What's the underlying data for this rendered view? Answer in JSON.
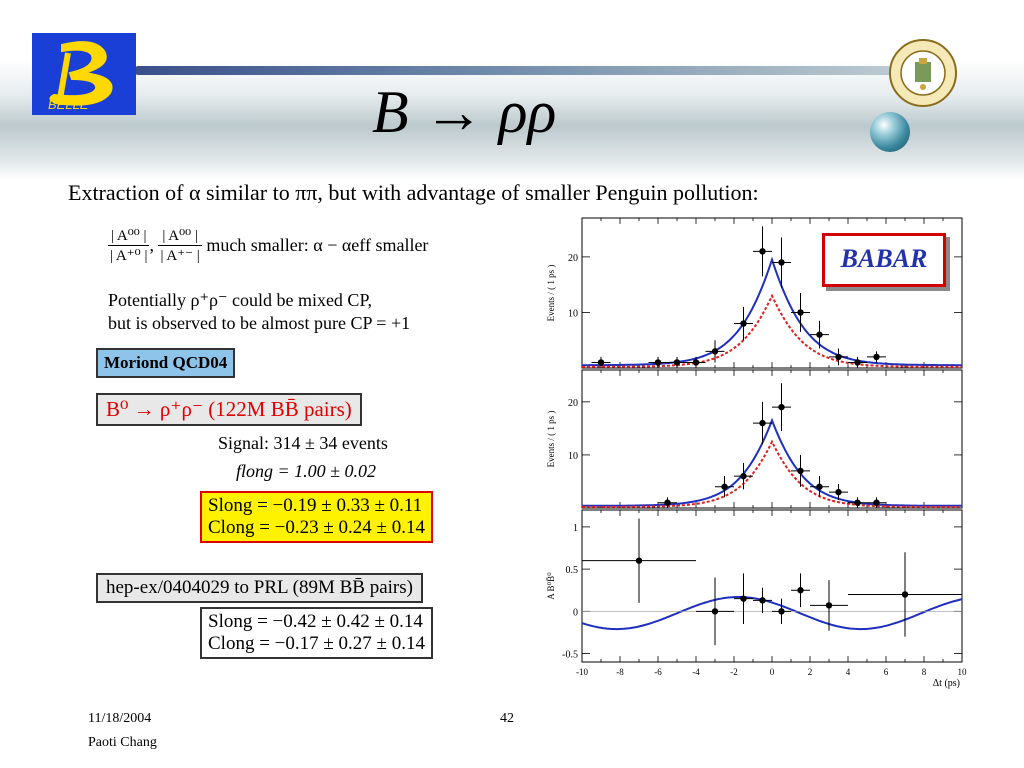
{
  "slide": {
    "title": "B → ρρ",
    "subtitle": "Extraction of α similar to ππ, but with advantage of smaller Penguin pollution:",
    "ratio_line": {
      "frac1_num": "| A⁰⁰ |",
      "frac1_den": "| A⁺⁰ |",
      "frac2_num": "| A⁰⁰ |",
      "frac2_den": "| A⁺⁻ |",
      "text": "much smaller: α − αeff smaller"
    },
    "mixed_cp": "Potentially ρ⁺ρ⁻ could be mixed CP,",
    "pure_cp": "but is observed to be almost pure CP = +1",
    "moriond_label": "Moriond QCD04",
    "decay_box": "B⁰ → ρ⁺ρ⁻ (122M BB̄ pairs)",
    "signal": "Signal: 314 ± 34 events",
    "flong": "flong = 1.00 ± 0.02",
    "s_long_1": "Slong = −0.19 ± 0.33 ± 0.11",
    "c_long_1": "Clong = −0.23 ± 0.24 ± 0.14",
    "hep_box": "hep-ex/0404029 to PRL (89M BB̄ pairs)",
    "s_long_2": "Slong = −0.42 ± 0.42 ± 0.14",
    "c_long_2": "Clong = −0.17 ± 0.27 ± 0.14",
    "footer_date": "11/18/2004",
    "footer_author": "Paoti Chang",
    "page_number": "42",
    "belle_logo_text": "BELLE",
    "babar_label": "BABAR"
  },
  "colors": {
    "fit_line": "#1f2fbf",
    "dashed_line": "#e02020",
    "moriond_bg": "#8ec3ea",
    "yellow_box": "#fff200",
    "box_border_red": "#e00000",
    "logo_blue": "#1a3fd6",
    "logo_yellow": "#ffd800"
  },
  "chart_data": [
    {
      "type": "scatter",
      "panel": "top",
      "ylabel": "Events / ( 1 ps )",
      "xlim": [
        -10,
        10
      ],
      "ylim": [
        0,
        27
      ],
      "yticks": [
        10,
        20
      ],
      "points": [
        {
          "x": -9,
          "y": 1,
          "xerr": 0.5,
          "yerr": 1
        },
        {
          "x": -6,
          "y": 1,
          "xerr": 0.5,
          "yerr": 1
        },
        {
          "x": -5,
          "y": 1,
          "xerr": 0.5,
          "yerr": 1
        },
        {
          "x": -4,
          "y": 1,
          "xerr": 0.5,
          "yerr": 1
        },
        {
          "x": -3,
          "y": 3,
          "xerr": 0.5,
          "yerr": 2
        },
        {
          "x": -1.5,
          "y": 8,
          "xerr": 0.5,
          "yerr": 3
        },
        {
          "x": -0.5,
          "y": 21,
          "xerr": 0.5,
          "yerr": 4.5
        },
        {
          "x": 0.5,
          "y": 19,
          "xerr": 0.5,
          "yerr": 4.5
        },
        {
          "x": 1.5,
          "y": 10,
          "xerr": 0.5,
          "yerr": 3.5
        },
        {
          "x": 2.5,
          "y": 6,
          "xerr": 0.5,
          "yerr": 2.5
        },
        {
          "x": 3.5,
          "y": 2,
          "xerr": 0.5,
          "yerr": 1.5
        },
        {
          "x": 4.5,
          "y": 1,
          "xerr": 0.5,
          "yerr": 1
        },
        {
          "x": 5.5,
          "y": 2,
          "xerr": 0.5,
          "yerr": 1
        }
      ],
      "fit_curve": {
        "peak": 19.5,
        "sigma_left": 1.1,
        "sigma_right": 1.1,
        "baseline": 0.5
      },
      "dashed_curve": {
        "peak": 13,
        "sigma_left": 1.05,
        "sigma_right": 1.05,
        "baseline": 0.2
      }
    },
    {
      "type": "scatter",
      "panel": "middle",
      "ylabel": "Events / ( 1 ps )",
      "xlim": [
        -10,
        10
      ],
      "ylim": [
        0,
        26
      ],
      "yticks": [
        10,
        20
      ],
      "points": [
        {
          "x": -5.5,
          "y": 1,
          "xerr": 0.5,
          "yerr": 1
        },
        {
          "x": -2.5,
          "y": 4,
          "xerr": 0.5,
          "yerr": 2
        },
        {
          "x": -1.5,
          "y": 6,
          "xerr": 0.5,
          "yerr": 2.5
        },
        {
          "x": -0.5,
          "y": 16,
          "xerr": 0.5,
          "yerr": 4
        },
        {
          "x": 0.5,
          "y": 19,
          "xerr": 0.5,
          "yerr": 4.5
        },
        {
          "x": 1.5,
          "y": 7,
          "xerr": 0.5,
          "yerr": 3
        },
        {
          "x": 2.5,
          "y": 4,
          "xerr": 0.5,
          "yerr": 2
        },
        {
          "x": 3.5,
          "y": 3,
          "xerr": 0.5,
          "yerr": 1.5
        },
        {
          "x": 4.5,
          "y": 1,
          "xerr": 0.5,
          "yerr": 1
        },
        {
          "x": 5.5,
          "y": 1,
          "xerr": 0.5,
          "yerr": 1
        }
      ],
      "fit_curve": {
        "peak": 16.5,
        "sigma_left": 1.05,
        "sigma_right": 1.05,
        "baseline": 0.4
      },
      "dashed_curve": {
        "peak": 12.5,
        "sigma_left": 1.0,
        "sigma_right": 1.0,
        "baseline": 0.2
      }
    },
    {
      "type": "scatter",
      "panel": "bottom",
      "ylabel": "A B⁰B̄⁰",
      "xlabel": "Δt (ps)",
      "xlim": [
        -10,
        10
      ],
      "ylim": [
        -0.6,
        1.2
      ],
      "yticks": [
        -0.5,
        0,
        0.5,
        1
      ],
      "xticks": [
        -10,
        -8,
        -6,
        -4,
        -2,
        0,
        2,
        4,
        6,
        8,
        10
      ],
      "points": [
        {
          "x": -7,
          "y": 0.6,
          "xerr": 3,
          "yerr": 0.5
        },
        {
          "x": -3,
          "y": 0.0,
          "xerr": 1,
          "yerr": 0.4
        },
        {
          "x": -1.5,
          "y": 0.15,
          "xerr": 0.5,
          "yerr": 0.3
        },
        {
          "x": -0.5,
          "y": 0.13,
          "xerr": 0.5,
          "yerr": 0.15
        },
        {
          "x": 0.5,
          "y": 0.0,
          "xerr": 0.5,
          "yerr": 0.15
        },
        {
          "x": 1.5,
          "y": 0.25,
          "xerr": 0.5,
          "yerr": 0.2
        },
        {
          "x": 3,
          "y": 0.07,
          "xerr": 1,
          "yerr": 0.3
        },
        {
          "x": 7,
          "y": 0.2,
          "xerr": 3,
          "yerr": 0.5
        }
      ],
      "curve": {
        "offset": -0.02,
        "amp": 0.19,
        "omega": 0.489,
        "phase": 2.43
      }
    }
  ]
}
